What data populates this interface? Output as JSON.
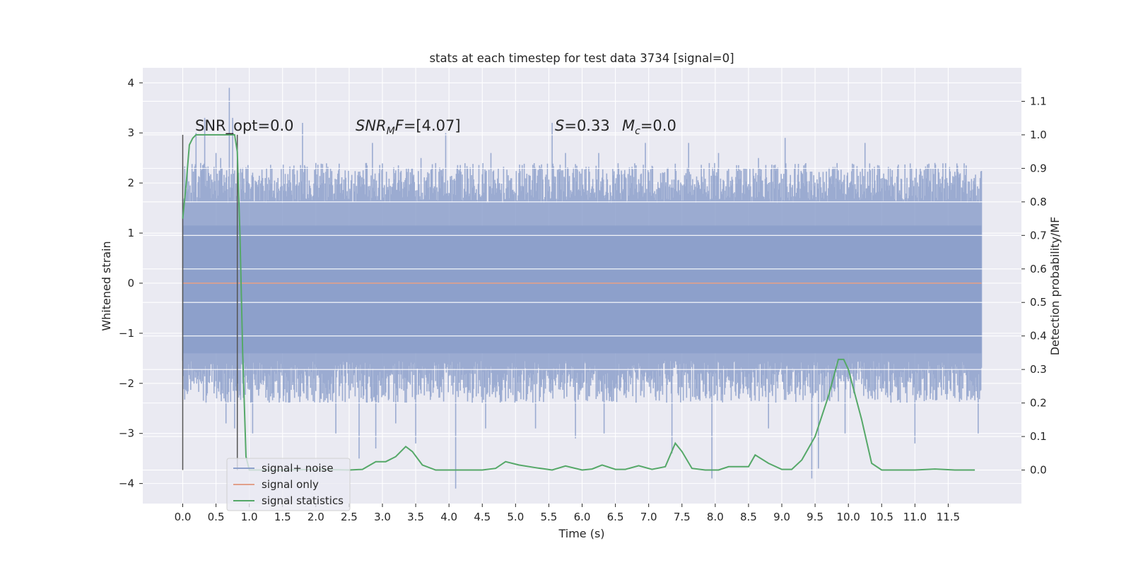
{
  "chart_data": {
    "type": "line",
    "title": "stats at each timestep for test data 3734 [signal=0]",
    "xlabel": "Time (s)",
    "ylabel": "Whitened strain",
    "y2label": "Detection probability/MF",
    "xlim": [
      -0.6,
      12.6
    ],
    "ylim": [
      -4.4,
      4.3
    ],
    "y2lim": [
      -0.1,
      1.2
    ],
    "x_ticks": [
      0.0,
      0.5,
      1.0,
      1.5,
      2.0,
      2.5,
      3.0,
      3.5,
      4.0,
      4.5,
      5.0,
      5.5,
      6.0,
      6.5,
      7.0,
      7.5,
      8.0,
      8.5,
      9.0,
      9.5,
      10.0,
      10.5,
      11.0,
      11.5
    ],
    "x_tick_labels": [
      "0.0",
      "0.5",
      "1.0",
      "1.5",
      "2.0",
      "2.5",
      "3.0",
      "3.5",
      "4.0",
      "4.5",
      "5.0",
      "5.5",
      "6.0",
      "6.5",
      "7.0",
      "7.5",
      "8.0",
      "8.5",
      "9.0",
      "9.5",
      "10.0",
      "10.5",
      "11.0",
      "11.5"
    ],
    "y_ticks": [
      4,
      3,
      2,
      1,
      0,
      -1,
      -2,
      -3,
      -4
    ],
    "y_tick_labels": [
      "4",
      "3",
      "2",
      "1",
      "0",
      "−1",
      "−2",
      "−3",
      "−4"
    ],
    "y2_ticks": [
      1.1,
      1.0,
      0.9,
      0.8,
      0.7,
      0.6,
      0.5,
      0.4,
      0.3,
      0.2,
      0.1,
      0.0
    ],
    "y2_tick_labels": [
      "1.1",
      "1.0",
      "0.9",
      "0.8",
      "0.7",
      "0.6",
      "0.5",
      "0.4",
      "0.3",
      "0.2",
      "0.1",
      "0.0"
    ],
    "grid": true,
    "legend_position": "lower-left",
    "annotations": {
      "snr_opt": "SNR_opt=0.0",
      "snr_mf_var": "SNR",
      "snr_mf_sub": "M",
      "snr_mf_rest": "F=[4.07]",
      "s_var": "S",
      "s_rest": "=0.33",
      "mc_var": "M",
      "mc_sub": "c",
      "mc_rest": "=0.0"
    },
    "markers": [
      {
        "x": 0.0
      },
      {
        "x": 0.82
      }
    ],
    "noise": {
      "name": "signal+ noise",
      "color": "#8da0cb",
      "x_range": [
        0.0,
        12.0
      ],
      "band": [
        -1.4,
        1.15
      ],
      "extreme_peaks": [
        [
          0.2,
          3.0
        ],
        [
          0.27,
          2.4
        ],
        [
          0.33,
          3.3
        ],
        [
          0.39,
          2.2
        ],
        [
          0.5,
          2.6
        ],
        [
          0.57,
          2.5
        ],
        [
          0.7,
          3.9
        ],
        [
          0.75,
          3.3
        ],
        [
          1.8,
          3.2
        ],
        [
          2.0,
          2.4
        ],
        [
          2.85,
          2.8
        ],
        [
          3.2,
          2.5
        ],
        [
          3.58,
          2.5
        ],
        [
          3.95,
          3.0
        ],
        [
          4.1,
          2.6
        ],
        [
          4.63,
          2.6
        ],
        [
          5.55,
          3.2
        ],
        [
          5.75,
          2.6
        ],
        [
          6.25,
          2.6
        ],
        [
          6.95,
          2.8
        ],
        [
          7.6,
          2.8
        ],
        [
          8.05,
          2.6
        ],
        [
          8.65,
          2.5
        ],
        [
          9.05,
          2.9
        ],
        [
          9.45,
          2.8
        ],
        [
          10.25,
          2.8
        ],
        [
          11.0,
          3.2
        ],
        [
          11.3,
          2.4
        ],
        [
          0.35,
          -2.4
        ],
        [
          0.47,
          -2.2
        ],
        [
          0.65,
          -2.8
        ],
        [
          0.78,
          -2.9
        ],
        [
          1.05,
          -3.0
        ],
        [
          2.3,
          -3.0
        ],
        [
          2.65,
          -3.5
        ],
        [
          2.9,
          -3.3
        ],
        [
          3.2,
          -2.8
        ],
        [
          3.5,
          -3.2
        ],
        [
          4.1,
          -4.1
        ],
        [
          4.55,
          -2.9
        ],
        [
          5.3,
          -2.9
        ],
        [
          5.9,
          -3.1
        ],
        [
          6.33,
          -3.0
        ],
        [
          7.35,
          -3.4
        ],
        [
          7.95,
          -3.9
        ],
        [
          8.8,
          -2.9
        ],
        [
          9.45,
          -3.9
        ],
        [
          9.55,
          -3.7
        ],
        [
          9.95,
          -3.0
        ],
        [
          11.0,
          -3.2
        ],
        [
          11.95,
          -3.0
        ]
      ],
      "typical_top": [
        1.6,
        2.4
      ],
      "typical_bottom": [
        -2.4,
        -1.55
      ]
    },
    "signal_only": {
      "name": "signal only",
      "color": "#e1a08a",
      "value": 0.0
    },
    "statistics": {
      "name": "signal statistics",
      "color": "#55a868",
      "x": [
        0.0,
        0.05,
        0.1,
        0.15,
        0.2,
        0.3,
        0.4,
        0.5,
        0.6,
        0.7,
        0.78,
        0.82,
        0.86,
        0.9,
        0.95,
        1.0,
        1.5,
        2.0,
        2.5,
        2.7,
        2.9,
        3.05,
        3.2,
        3.35,
        3.45,
        3.6,
        3.8,
        4.0,
        4.5,
        4.7,
        4.85,
        5.05,
        5.3,
        5.55,
        5.75,
        6.0,
        6.15,
        6.3,
        6.5,
        6.65,
        6.85,
        7.05,
        7.25,
        7.4,
        7.5,
        7.65,
        7.85,
        8.05,
        8.2,
        8.5,
        8.6,
        8.8,
        9.0,
        9.15,
        9.3,
        9.5,
        9.7,
        9.85,
        9.93,
        10.0,
        10.2,
        10.35,
        10.5,
        11.0,
        11.3,
        11.6,
        11.9
      ],
      "y": [
        0.75,
        0.85,
        0.97,
        0.99,
        1.0,
        1.0,
        1.0,
        1.0,
        1.0,
        1.0,
        1.0,
        0.95,
        0.7,
        0.35,
        0.04,
        0.0,
        0.0,
        0.002,
        0.0,
        0.002,
        0.025,
        0.025,
        0.04,
        0.07,
        0.055,
        0.015,
        0.0,
        0.0,
        0.0,
        0.005,
        0.025,
        0.015,
        0.007,
        0.0,
        0.012,
        0.0,
        0.003,
        0.015,
        0.002,
        0.002,
        0.013,
        0.002,
        0.01,
        0.08,
        0.055,
        0.005,
        0.0,
        0.0,
        0.01,
        0.01,
        0.045,
        0.02,
        0.002,
        0.002,
        0.03,
        0.1,
        0.22,
        0.33,
        0.33,
        0.3,
        0.15,
        0.02,
        0.0,
        0.0,
        0.003,
        0.0,
        0.0
      ]
    }
  }
}
